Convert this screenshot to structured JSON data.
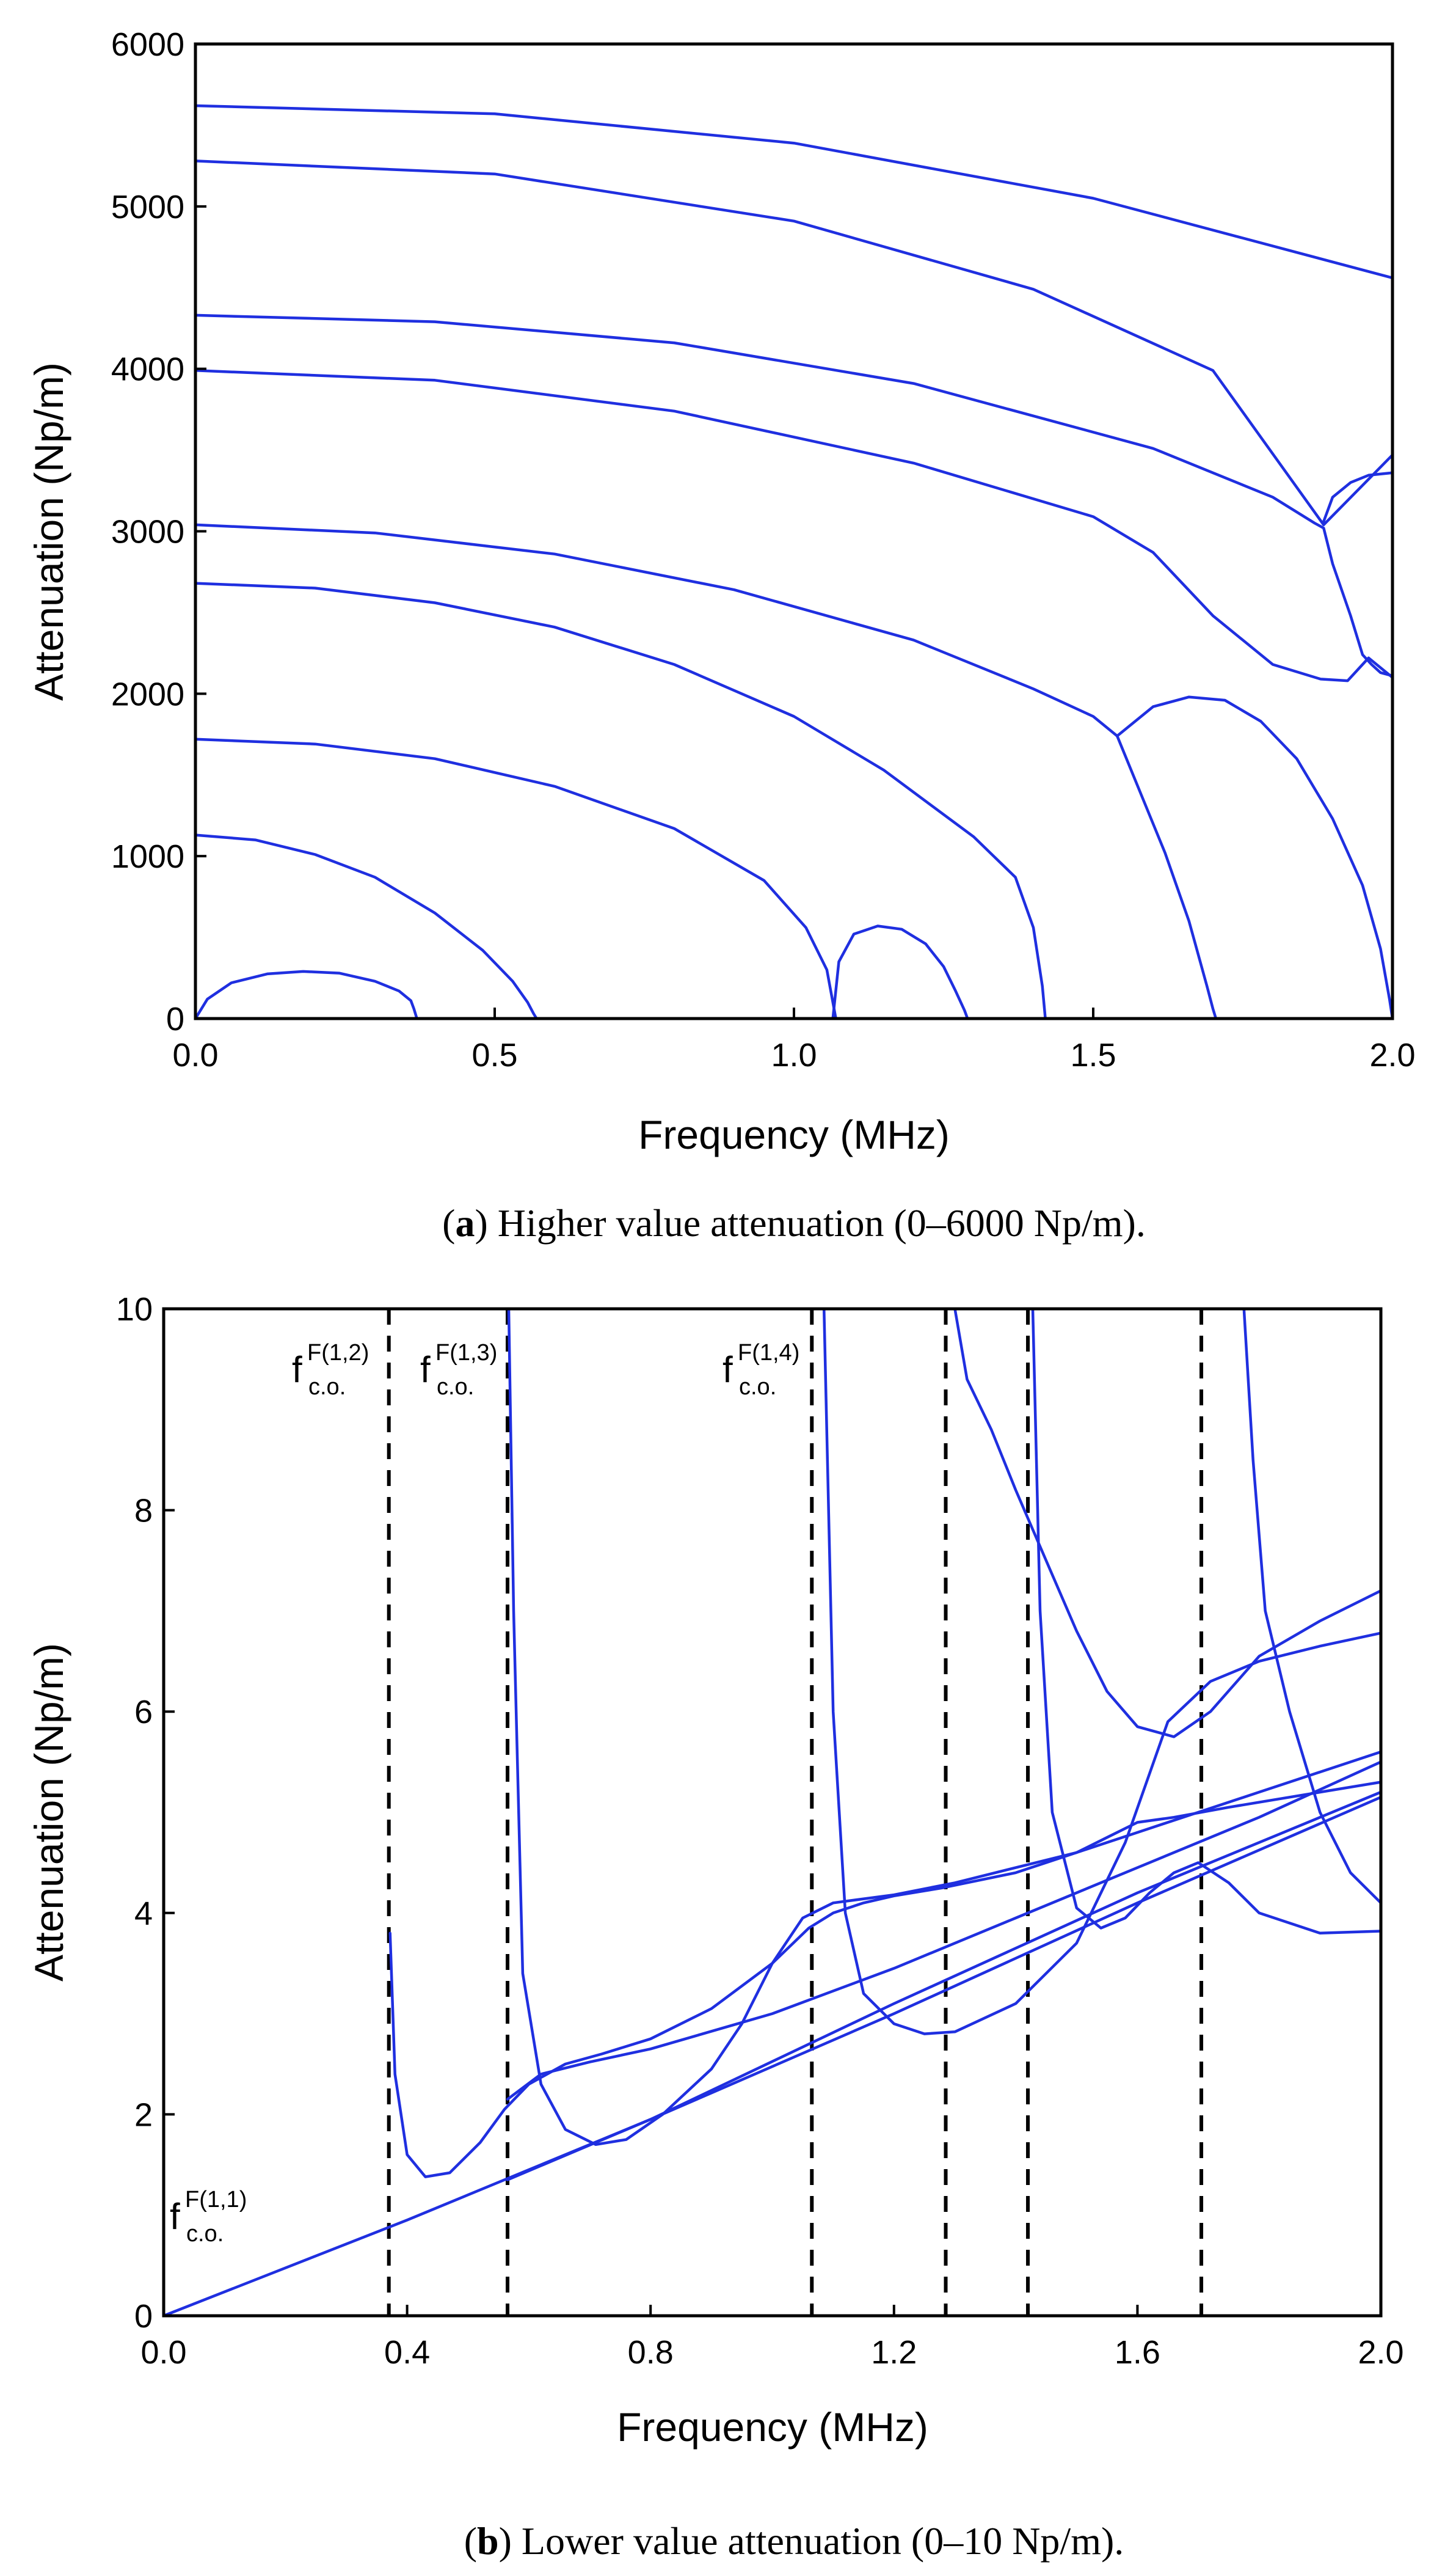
{
  "colors": {
    "curve": "#1f2fe0",
    "curve_faint": "#8a92f0",
    "axis": "#000000",
    "cutoff": "#000000"
  },
  "chart_data": [
    {
      "id": "a",
      "type": "line",
      "xlabel": "Frequency (MHz)",
      "ylabel": "Attenuation (Np/m)",
      "xlim": [
        0,
        2.0
      ],
      "ylim": [
        0,
        6000
      ],
      "xticks": [
        "0.0",
        "0.5",
        "1.0",
        "1.5",
        "2.0"
      ],
      "yticks": [
        "0",
        "1000",
        "2000",
        "3000",
        "4000",
        "5000",
        "6000"
      ],
      "caption_letter": "a",
      "caption_text": ") Higher value attenuation (0–6000 Np/m).",
      "caption_open": "(",
      "series": [
        {
          "x": [
            0,
            0.02,
            0.06,
            0.12,
            0.18,
            0.24,
            0.3,
            0.34,
            0.36,
            0.365,
            0.37,
            2.0
          ],
          "y": [
            0,
            120,
            220,
            275,
            290,
            280,
            230,
            170,
            110,
            60,
            0,
            0
          ]
        },
        {
          "x": [
            0,
            0.1,
            0.2,
            0.3,
            0.4,
            0.48,
            0.53,
            0.555,
            0.565,
            0.57,
            2.0
          ],
          "y": [
            1130,
            1100,
            1010,
            870,
            650,
            420,
            230,
            100,
            30,
            0,
            0
          ]
        },
        {
          "x": [
            0,
            0.2,
            0.4,
            0.6,
            0.8,
            0.95,
            1.02,
            1.055,
            1.065,
            1.07
          ],
          "y": [
            1720,
            1690,
            1600,
            1430,
            1170,
            850,
            560,
            300,
            100,
            0
          ]
        },
        {
          "x": [
            1.065,
            1.075,
            1.1,
            1.14,
            1.18,
            1.22,
            1.25,
            1.27,
            1.285,
            1.29,
            2.0
          ],
          "y": [
            0,
            350,
            520,
            570,
            550,
            460,
            320,
            170,
            50,
            0,
            0
          ]
        },
        {
          "x": [
            0,
            0.2,
            0.4,
            0.6,
            0.8,
            1.0,
            1.15,
            1.3,
            1.37,
            1.4,
            1.415,
            1.42,
            2.0
          ],
          "y": [
            2680,
            2650,
            2560,
            2410,
            2180,
            1860,
            1530,
            1120,
            870,
            560,
            200,
            0,
            0
          ]
        },
        {
          "x": [
            0,
            0.3,
            0.6,
            0.9,
            1.2,
            1.4,
            1.5,
            1.54
          ],
          "y": [
            3040,
            2990,
            2860,
            2640,
            2330,
            2030,
            1860,
            1740
          ]
        },
        {
          "x": [
            1.54,
            1.6,
            1.66,
            1.72,
            1.78,
            1.84,
            1.9,
            1.95,
            1.98,
            1.995,
            2.0
          ],
          "y": [
            1740,
            1920,
            1980,
            1960,
            1830,
            1600,
            1230,
            820,
            430,
            120,
            0
          ]
        },
        {
          "x": [
            1.54,
            1.58,
            1.62,
            1.66,
            1.69,
            1.7,
            1.705,
            2.0
          ],
          "y": [
            1740,
            1380,
            1020,
            600,
            200,
            60,
            0,
            0
          ]
        },
        {
          "x": [
            0,
            0.4,
            0.8,
            1.2,
            1.5,
            1.6,
            1.7,
            1.8,
            1.88,
            1.925,
            1.945,
            1.96,
            2.0
          ],
          "y": [
            3990,
            3930,
            3740,
            3420,
            3090,
            2870,
            2480,
            2180,
            2090,
            2080,
            2160,
            2220,
            2100
          ]
        },
        {
          "x": [
            0,
            0.4,
            0.8,
            1.2,
            1.6,
            1.8,
            1.87,
            1.885,
            1.9,
            1.93,
            1.95,
            1.965,
            1.98,
            2.0
          ],
          "y": [
            4330,
            4290,
            4160,
            3910,
            3510,
            3210,
            3050,
            3020,
            2800,
            2480,
            2240,
            2180,
            2130,
            2110
          ]
        },
        {
          "x": [
            1.885,
            1.9,
            1.93,
            1.96,
            2.0
          ],
          "y": [
            3060,
            3210,
            3300,
            3345,
            3360
          ]
        },
        {
          "x": [
            0,
            0.5,
            1.0,
            1.4,
            1.7,
            1.885,
            2.0
          ],
          "y": [
            5280,
            5200,
            4910,
            4490,
            3990,
            3040,
            3470
          ]
        },
        {
          "x": [
            0,
            0.5,
            1.0,
            1.5,
            2.0
          ],
          "y": [
            5620,
            5570,
            5390,
            5050,
            4560
          ]
        }
      ]
    },
    {
      "id": "b",
      "type": "line",
      "xlabel": "Frequency (MHz)",
      "ylabel": "Attenuation (Np/m)",
      "xlim": [
        0,
        2.0
      ],
      "ylim": [
        0,
        10
      ],
      "xticks": [
        "0.0",
        "0.4",
        "0.8",
        "1.2",
        "1.6",
        "2.0"
      ],
      "yticks": [
        "0",
        "2",
        "4",
        "6",
        "8",
        "10"
      ],
      "caption_letter": "b",
      "caption_text": ") Lower value attenuation (0–10 Np/m).",
      "caption_open": "(",
      "cutoffs": [
        0.37,
        0.565,
        1.065,
        1.285,
        1.42,
        1.705
      ],
      "annotations": [
        {
          "base": "f",
          "sup": "F(1,1)",
          "sub": "c.o."
        },
        {
          "base": "f",
          "sup": "F(1,2)",
          "sub": "c.o."
        },
        {
          "base": "f",
          "sup": "F(1,3)",
          "sub": "c.o."
        },
        {
          "base": "f",
          "sup": "F(1,4)",
          "sub": "c.o."
        }
      ],
      "series": [
        {
          "x": [
            0,
            0.4,
            0.8,
            1.2,
            1.6,
            2.0
          ],
          "y": [
            0,
            0.95,
            1.95,
            3.0,
            4.1,
            5.15
          ]
        },
        {
          "x": [
            0.565,
            0.8,
            1.2,
            1.6,
            2.0
          ],
          "y": [
            1.35,
            1.95,
            3.1,
            4.2,
            5.2
          ]
        },
        {
          "x": [
            0.565,
            0.62,
            0.7,
            0.8,
            1.0,
            1.2,
            1.4,
            1.6,
            1.8,
            2.0
          ],
          "y": [
            2.15,
            2.4,
            2.52,
            2.65,
            3.0,
            3.45,
            3.95,
            4.45,
            4.95,
            5.5
          ]
        },
        {
          "x": [
            0.372,
            0.38,
            0.4,
            0.43,
            0.47,
            0.52,
            0.56,
            0.6,
            0.66,
            0.72,
            0.8,
            0.9,
            1.0,
            1.06,
            1.1,
            1.15,
            1.2,
            1.28,
            1.4,
            1.5,
            1.6,
            1.7,
            1.8,
            1.9,
            2.0
          ],
          "y": [
            3.8,
            2.4,
            1.6,
            1.38,
            1.42,
            1.72,
            2.05,
            2.3,
            2.5,
            2.6,
            2.75,
            3.05,
            3.5,
            3.85,
            4.0,
            4.1,
            4.17,
            4.25,
            4.4,
            4.6,
            4.8,
            5.0,
            5.2,
            5.4,
            5.6
          ]
        },
        {
          "x": [
            0.567,
            0.575,
            0.59,
            0.62,
            0.66,
            0.71,
            0.76,
            0.82,
            0.9,
            0.95,
            1.0,
            1.05,
            1.1,
            1.2,
            1.3,
            1.4,
            1.5,
            1.55,
            1.6,
            1.66,
            1.75,
            1.85,
            2.0
          ],
          "y": [
            10,
            7,
            3.4,
            2.3,
            1.85,
            1.7,
            1.75,
            2.0,
            2.45,
            2.9,
            3.5,
            3.95,
            4.1,
            4.18,
            4.3,
            4.45,
            4.6,
            4.75,
            4.9,
            4.95,
            5.05,
            5.15,
            5.3
          ]
        },
        {
          "x": [
            1.085,
            1.1,
            1.12,
            1.15,
            1.2,
            1.25,
            1.3,
            1.4,
            1.5,
            1.58,
            1.65,
            1.72,
            1.8,
            1.9,
            2.0
          ],
          "y": [
            10,
            6.0,
            4.0,
            3.2,
            2.9,
            2.8,
            2.82,
            3.1,
            3.7,
            4.7,
            5.9,
            6.3,
            6.5,
            6.65,
            6.78
          ]
        },
        {
          "x": [
            1.3,
            1.32,
            1.36,
            1.4,
            1.45,
            1.5,
            1.55,
            1.6,
            1.66,
            1.72,
            1.8,
            1.9,
            2.0
          ],
          "y": [
            10,
            9.3,
            8.8,
            8.2,
            7.5,
            6.8,
            6.2,
            5.85,
            5.75,
            6.0,
            6.55,
            6.9,
            7.2
          ]
        },
        {
          "x": [
            1.428,
            1.44,
            1.46,
            1.5,
            1.54,
            1.58,
            1.62,
            1.66,
            1.7,
            1.75,
            1.8,
            1.9,
            2.0
          ],
          "y": [
            10,
            7.0,
            5.0,
            4.05,
            3.85,
            3.95,
            4.2,
            4.4,
            4.5,
            4.3,
            4.0,
            3.8,
            3.82
          ]
        },
        {
          "x": [
            1.775,
            1.79,
            1.81,
            1.85,
            1.9,
            1.95,
            2.0
          ],
          "y": [
            10,
            8.5,
            7.0,
            6.0,
            5.0,
            4.4,
            4.1
          ]
        }
      ]
    }
  ]
}
